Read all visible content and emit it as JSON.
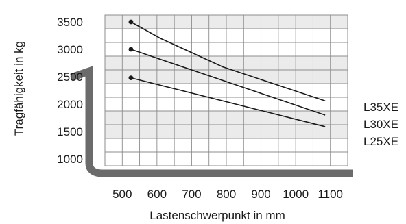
{
  "chart_data": {
    "type": "line",
    "title": "",
    "xlabel": "Lastenschwerpunkt in mm",
    "ylabel": "Tragfähigkeit in kg",
    "xlim": [
      450,
      1150
    ],
    "ylim": [
      875,
      3625
    ],
    "x_ticks": [
      500,
      600,
      700,
      800,
      900,
      1000,
      1100
    ],
    "y_ticks": [
      1000,
      1500,
      2000,
      2500,
      3000,
      3500
    ],
    "grid": true,
    "band_fill": "#ebebeb",
    "grid_color": "#8c8c8c",
    "line_color": "#1a1a1a",
    "fork_color": "#6b6b6b",
    "legend_placement": "right",
    "series": [
      {
        "name": "L35XE",
        "x": [
          525,
          610,
          790,
          1085
        ],
        "y": [
          3500,
          3200,
          2680,
          2060
        ]
      },
      {
        "name": "L30XE",
        "x": [
          525,
          1085
        ],
        "y": [
          3000,
          1800
        ]
      },
      {
        "name": "L25XE",
        "x": [
          525,
          1085
        ],
        "y": [
          2480,
          1590
        ]
      }
    ],
    "legend": [
      "L35XE",
      "L30XE",
      "L25XE"
    ]
  }
}
